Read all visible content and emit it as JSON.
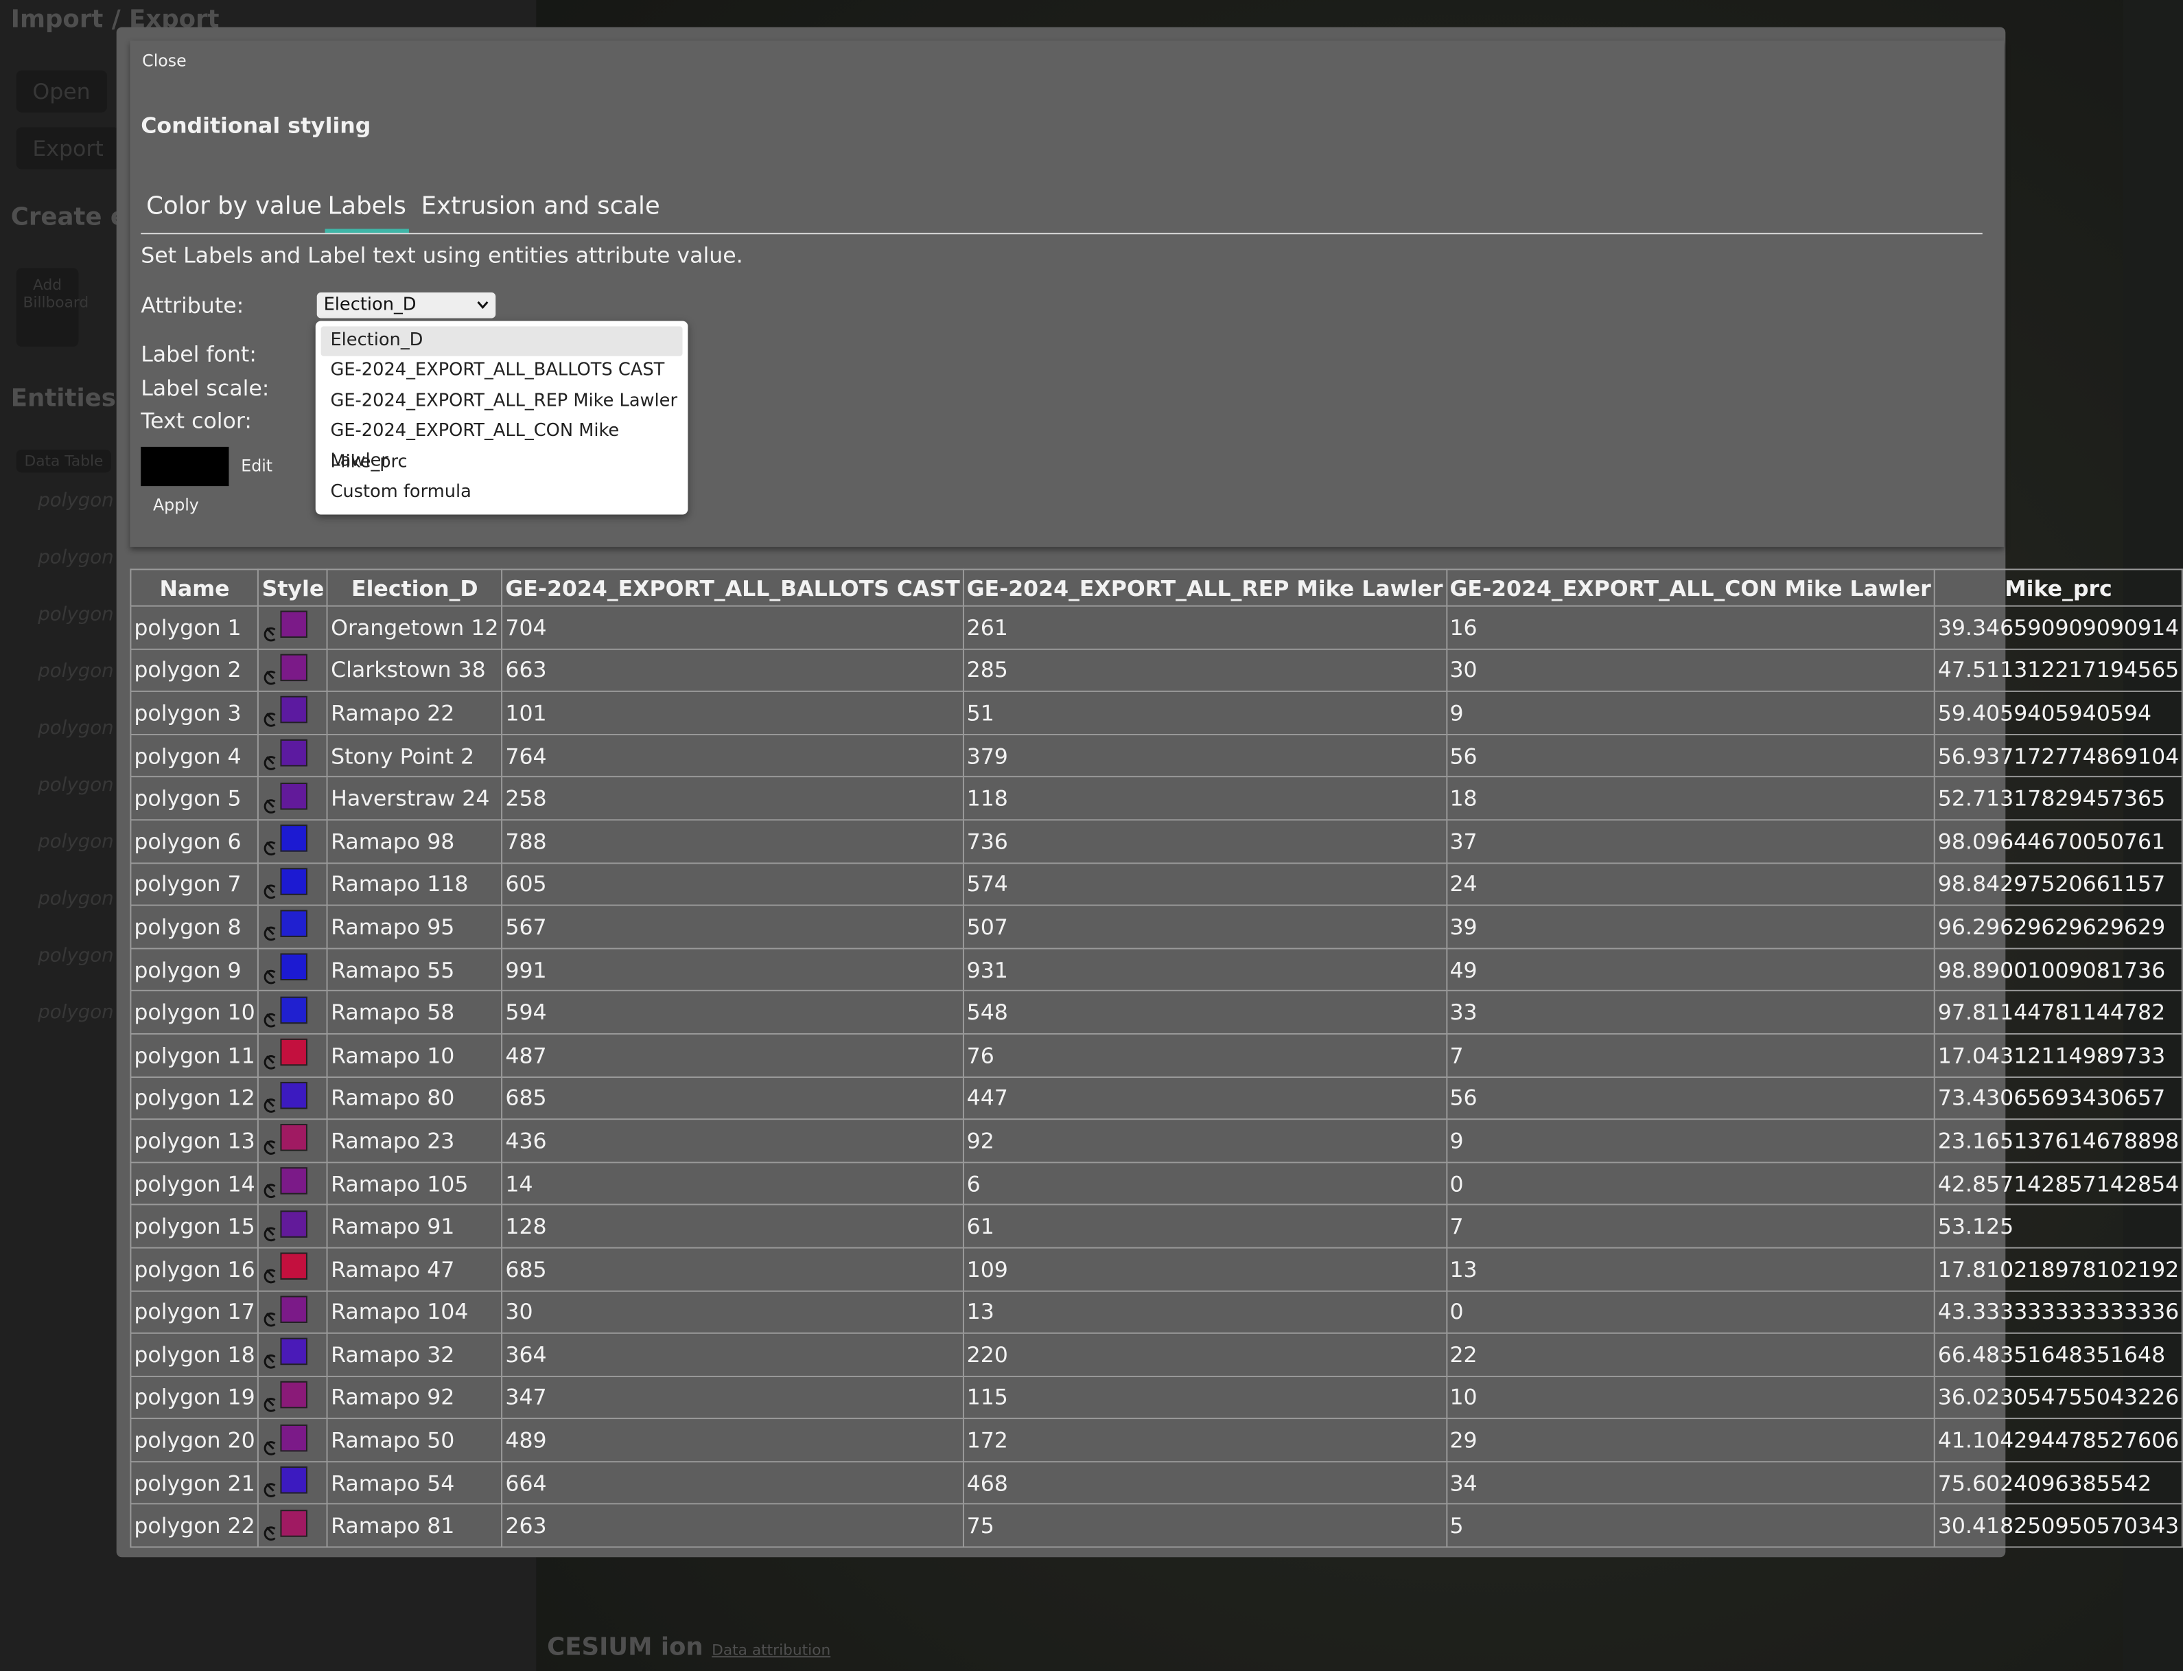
{
  "sidebar": {
    "title": "Import / Export",
    "buttons": [
      "Open",
      "Export"
    ],
    "create_heading": "Create e",
    "add_button": "Add Billboard",
    "entities_heading": "Entities",
    "data_table_button": "Data Table",
    "items": [
      "polygon",
      "polygon",
      "polygon",
      "polygon",
      "polygon",
      "polygon",
      "polygon",
      "polygon",
      "polygon",
      "polygon"
    ]
  },
  "footer": {
    "logo": "CESIUM ion",
    "attribution": "Data attribution"
  },
  "dialog": {
    "close": "Close",
    "title": "Conditional styling",
    "tabs": [
      "Color by value",
      "Labels",
      "Extrusion and scale"
    ],
    "active_tab": 1,
    "description": "Set Labels and Label text using entities attribute value.",
    "attribute_label": "Attribute:",
    "attribute_value": "Election_D",
    "options": [
      "Election_D",
      "GE-2024_EXPORT_ALL_BALLOTS CAST",
      "GE-2024_EXPORT_ALL_REP Mike Lawler",
      "GE-2024_EXPORT_ALL_CON Mike Lawler",
      "Mike_prc",
      "Custom formula"
    ],
    "label_font": "Label font:",
    "label_scale": "Label scale:",
    "text_color": "Text color:",
    "edit": "Edit",
    "apply": "Apply"
  },
  "table": {
    "headers": [
      "Name",
      "Style",
      "Election_D",
      "GE-2024_EXPORT_ALL_BALLOTS CAST",
      "GE-2024_EXPORT_ALL_REP Mike Lawler",
      "GE-2024_EXPORT_ALL_CON Mike Lawler",
      "Mike_prc"
    ],
    "swatches": [
      "#7b1a88",
      "#7b1a88",
      "#5c1aa0",
      "#5c1aa0",
      "#621a9a",
      "#1c1ad2",
      "#1c1ad2",
      "#2020d0",
      "#1c1ad2",
      "#2020d0",
      "#c3103e",
      "#3c1ac0",
      "#a01a62",
      "#7b1a88",
      "#621a9a",
      "#c3103e",
      "#7b1a88",
      "#4a1ab8",
      "#8a1a78",
      "#7b1a88",
      "#3c1ac0",
      "#a01a62"
    ],
    "rows": [
      [
        "polygon 1",
        "Orangetown 12",
        "704",
        "261",
        "16",
        "39.346590909090914"
      ],
      [
        "polygon 2",
        "Clarkstown 38",
        "663",
        "285",
        "30",
        "47.511312217194565"
      ],
      [
        "polygon 3",
        "Ramapo 22",
        "101",
        "51",
        "9",
        "59.4059405940594"
      ],
      [
        "polygon 4",
        "Stony Point 2",
        "764",
        "379",
        "56",
        "56.937172774869104"
      ],
      [
        "polygon 5",
        "Haverstraw 24",
        "258",
        "118",
        "18",
        "52.71317829457365"
      ],
      [
        "polygon 6",
        "Ramapo 98",
        "788",
        "736",
        "37",
        "98.09644670050761"
      ],
      [
        "polygon 7",
        "Ramapo 118",
        "605",
        "574",
        "24",
        "98.84297520661157"
      ],
      [
        "polygon 8",
        "Ramapo 95",
        "567",
        "507",
        "39",
        "96.29629629629629"
      ],
      [
        "polygon 9",
        "Ramapo 55",
        "991",
        "931",
        "49",
        "98.89001009081736"
      ],
      [
        "polygon 10",
        "Ramapo 58",
        "594",
        "548",
        "33",
        "97.81144781144782"
      ],
      [
        "polygon 11",
        "Ramapo 10",
        "487",
        "76",
        "7",
        "17.04312114989733"
      ],
      [
        "polygon 12",
        "Ramapo 80",
        "685",
        "447",
        "56",
        "73.43065693430657"
      ],
      [
        "polygon 13",
        "Ramapo 23",
        "436",
        "92",
        "9",
        "23.165137614678898"
      ],
      [
        "polygon 14",
        "Ramapo 105",
        "14",
        "6",
        "0",
        "42.857142857142854"
      ],
      [
        "polygon 15",
        "Ramapo 91",
        "128",
        "61",
        "7",
        "53.125"
      ],
      [
        "polygon 16",
        "Ramapo 47",
        "685",
        "109",
        "13",
        "17.810218978102192"
      ],
      [
        "polygon 17",
        "Ramapo 104",
        "30",
        "13",
        "0",
        "43.333333333333336"
      ],
      [
        "polygon 18",
        "Ramapo 32",
        "364",
        "220",
        "22",
        "66.48351648351648"
      ],
      [
        "polygon 19",
        "Ramapo 92",
        "347",
        "115",
        "10",
        "36.023054755043226"
      ],
      [
        "polygon 20",
        "Ramapo 50",
        "489",
        "172",
        "29",
        "41.104294478527606"
      ],
      [
        "polygon 21",
        "Ramapo 54",
        "664",
        "468",
        "34",
        "75.6024096385542"
      ],
      [
        "polygon 22",
        "Ramapo 81",
        "263",
        "75",
        "5",
        "30.418250950570343"
      ]
    ]
  }
}
